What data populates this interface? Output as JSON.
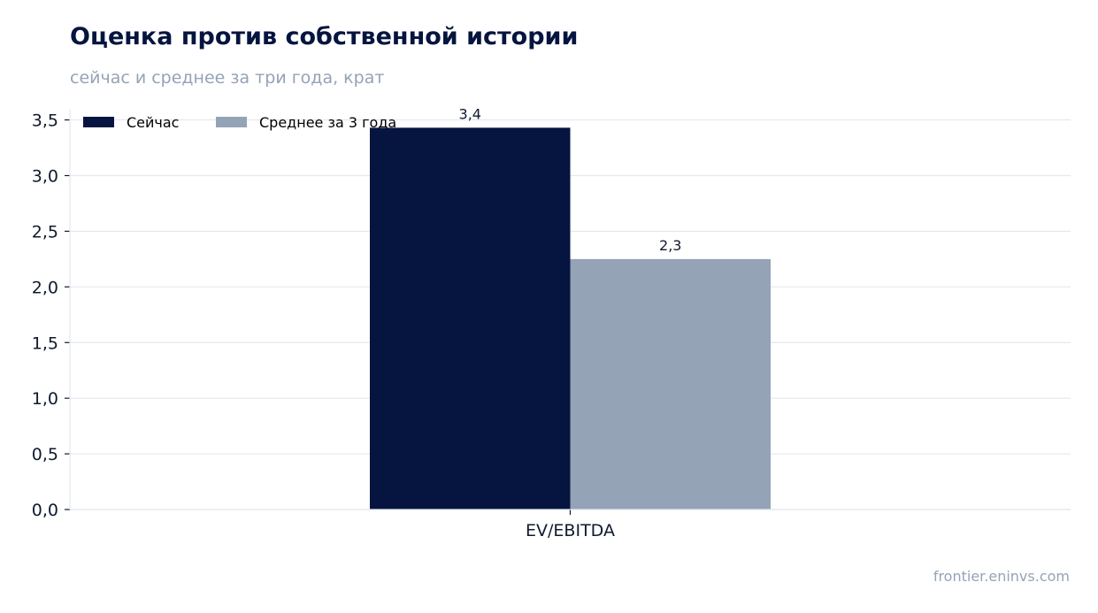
{
  "header": {
    "title": "Оценка против собственной истории",
    "subtitle": "сейчас и среднее за три года, крат"
  },
  "footer": {
    "source": "frontier.eninvs.com"
  },
  "colors": {
    "now": "#06153f",
    "avg": "#95a3b7",
    "grid": "#e3e7ef",
    "axis": "#0f1a2e"
  },
  "chart_data": {
    "type": "bar",
    "categories": [
      "EV/EBITDA"
    ],
    "series": [
      {
        "name": "Сейчас",
        "values": [
          3.43
        ],
        "label": "3,4",
        "color": "#06153f"
      },
      {
        "name": "Среднее за 3 года",
        "values": [
          2.25
        ],
        "label": "2,3",
        "color": "#95a3b7"
      }
    ],
    "ylim": [
      0,
      3.6
    ],
    "yticks": [
      0,
      0.5,
      1.0,
      1.5,
      2.0,
      2.5,
      3.0,
      3.5
    ],
    "ytick_labels": [
      "0,0",
      "0,5",
      "1,0",
      "1,5",
      "2,0",
      "2,5",
      "3,0",
      "3,5"
    ],
    "grid": true,
    "legend_position": "top-left"
  }
}
